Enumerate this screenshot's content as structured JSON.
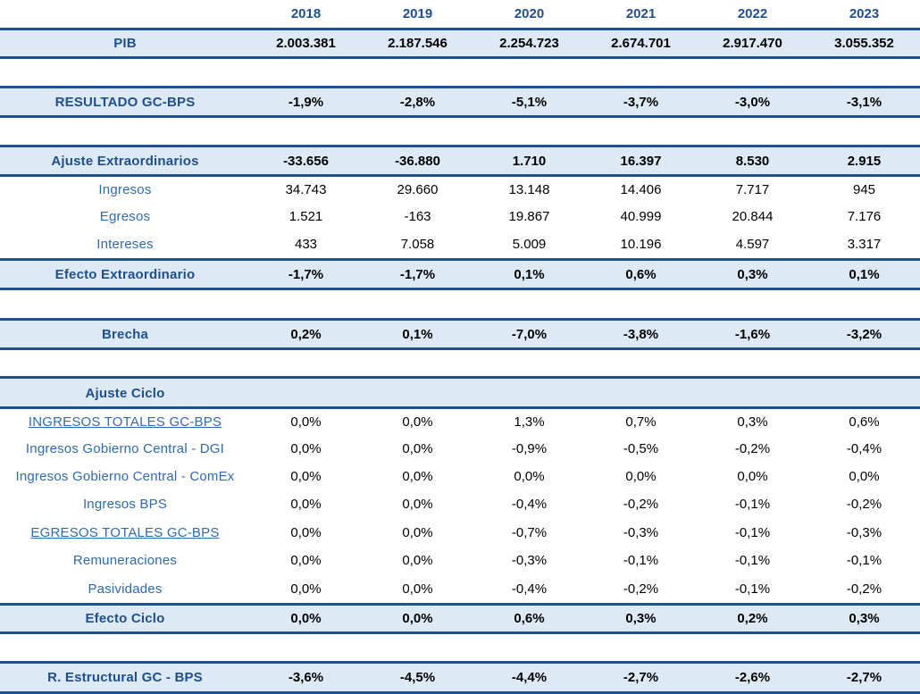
{
  "years": [
    "2018",
    "2019",
    "2020",
    "2021",
    "2022",
    "2023"
  ],
  "rows": {
    "pib": {
      "label": "PIB",
      "values": [
        "2.003.381",
        "2.187.546",
        "2.254.723",
        "2.674.701",
        "2.917.470",
        "3.055.352"
      ]
    },
    "resultado": {
      "label": "RESULTADO GC-BPS",
      "values": [
        "-1,9%",
        "-2,8%",
        "-5,1%",
        "-3,7%",
        "-3,0%",
        "-3,1%"
      ]
    },
    "ajuste_extra": {
      "label": "Ajuste Extraordinarios",
      "values": [
        "-33.656",
        "-36.880",
        "1.710",
        "16.397",
        "8.530",
        "2.915"
      ]
    },
    "ingresos": {
      "label": "Ingresos",
      "values": [
        "34.743",
        "29.660",
        "13.148",
        "14.406",
        "7.717",
        "945"
      ]
    },
    "egresos": {
      "label": "Egresos",
      "values": [
        "1.521",
        "-163",
        "19.867",
        "40.999",
        "20.844",
        "7.176"
      ]
    },
    "intereses": {
      "label": "Intereses",
      "values": [
        "433",
        "7.058",
        "5.009",
        "10.196",
        "4.597",
        "3.317"
      ]
    },
    "efecto_extra": {
      "label": "Efecto Extraordinario",
      "values": [
        "-1,7%",
        "-1,7%",
        "0,1%",
        "0,6%",
        "0,3%",
        "0,1%"
      ]
    },
    "brecha": {
      "label": "Brecha",
      "values": [
        "0,2%",
        "0,1%",
        "-7,0%",
        "-3,8%",
        "-1,6%",
        "-3,2%"
      ]
    },
    "ajuste_ciclo": {
      "label": "Ajuste Ciclo"
    },
    "ingresos_totales": {
      "label": "INGRESOS TOTALES GC-BPS",
      "values": [
        "0,0%",
        "0,0%",
        "1,3%",
        "0,7%",
        "0,3%",
        "0,6%"
      ]
    },
    "ing_gc_dgi": {
      "label": "Ingresos Gobierno Central - DGI",
      "values": [
        "0,0%",
        "0,0%",
        "-0,9%",
        "-0,5%",
        "-0,2%",
        "-0,4%"
      ]
    },
    "ing_gc_comex": {
      "label": "Ingresos Gobierno Central - ComEx",
      "values": [
        "0,0%",
        "0,0%",
        "0,0%",
        "0,0%",
        "0,0%",
        "0,0%"
      ]
    },
    "ing_bps": {
      "label": "Ingresos BPS",
      "values": [
        "0,0%",
        "0,0%",
        "-0,4%",
        "-0,2%",
        "-0,1%",
        "-0,2%"
      ]
    },
    "egresos_totales": {
      "label": "EGRESOS TOTALES GC-BPS",
      "values": [
        "0,0%",
        "0,0%",
        "-0,7%",
        "-0,3%",
        "-0,1%",
        "-0,3%"
      ]
    },
    "remuneraciones": {
      "label": "Remuneraciones",
      "values": [
        "0,0%",
        "0,0%",
        "-0,3%",
        "-0,1%",
        "-0,1%",
        "-0,1%"
      ]
    },
    "pasividades": {
      "label": "Pasividades",
      "values": [
        "0,0%",
        "0,0%",
        "-0,4%",
        "-0,2%",
        "-0,1%",
        "-0,2%"
      ]
    },
    "efecto_ciclo": {
      "label": "Efecto Ciclo",
      "values": [
        "0,0%",
        "0,0%",
        "0,6%",
        "0,3%",
        "0,2%",
        "0,3%"
      ]
    },
    "r_estructural": {
      "label": "R. Estructural GC - BPS",
      "values": [
        "-3,6%",
        "-4,5%",
        "-4,4%",
        "-2,7%",
        "-2,6%",
        "-2,7%"
      ]
    }
  }
}
